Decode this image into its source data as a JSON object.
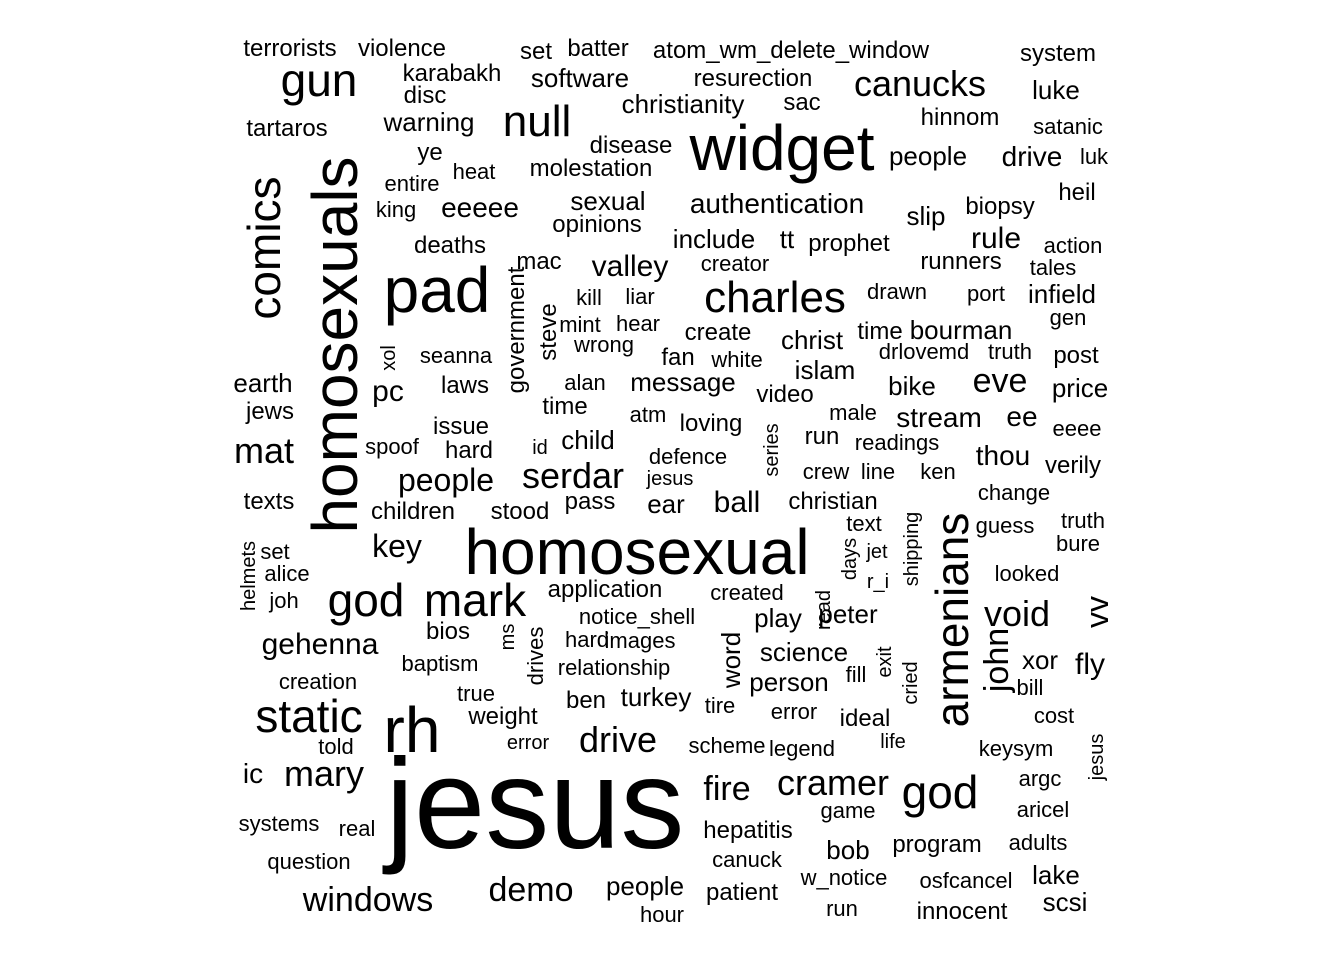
{
  "word_cloud": {
    "text_color": "#000000",
    "background_color": "#ffffff",
    "words": [
      {
        "text": "jesus",
        "vertical": false
      },
      {
        "text": "homosexual",
        "vertical": false
      },
      {
        "text": "widget",
        "vertical": false
      },
      {
        "text": "homosexuals",
        "vertical": true
      },
      {
        "text": "pad",
        "vertical": false
      },
      {
        "text": "rh",
        "vertical": false
      },
      {
        "text": "armenians",
        "vertical": true
      },
      {
        "text": "comics",
        "vertical": true
      },
      {
        "text": "gun",
        "vertical": false
      },
      {
        "text": "static",
        "vertical": false
      },
      {
        "text": "mark",
        "vertical": false
      },
      {
        "text": "god",
        "vertical": false
      },
      {
        "text": "god",
        "vertical": false
      },
      {
        "text": "charles",
        "vertical": false
      },
      {
        "text": "null",
        "vertical": false
      },
      {
        "text": "cramer",
        "vertical": false
      },
      {
        "text": "drive",
        "vertical": false
      },
      {
        "text": "void",
        "vertical": false
      },
      {
        "text": "serdar",
        "vertical": false
      },
      {
        "text": "canucks",
        "vertical": false
      },
      {
        "text": "mary",
        "vertical": false
      },
      {
        "text": "mat",
        "vertical": false
      },
      {
        "text": "windows",
        "vertical": false
      },
      {
        "text": "demo",
        "vertical": false
      },
      {
        "text": "fire",
        "vertical": false
      },
      {
        "text": "eve",
        "vertical": false
      },
      {
        "text": "john",
        "vertical": true
      },
      {
        "text": "vv",
        "vertical": true
      },
      {
        "text": "key",
        "vertical": false
      },
      {
        "text": "people",
        "vertical": false
      },
      {
        "text": "gehenna",
        "vertical": false
      },
      {
        "text": "ball",
        "vertical": false
      },
      {
        "text": "valley",
        "vertical": false
      },
      {
        "text": "rule",
        "vertical": false
      },
      {
        "text": "authentication",
        "vertical": false
      },
      {
        "text": "eeeee",
        "vertical": false
      },
      {
        "text": "fly",
        "vertical": false
      },
      {
        "text": "drive",
        "vertical": false
      },
      {
        "text": "software",
        "vertical": false
      },
      {
        "text": "terrorists",
        "vertical": false
      },
      {
        "text": "violence",
        "vertical": false
      },
      {
        "text": "set",
        "vertical": false
      },
      {
        "text": "batter",
        "vertical": false
      },
      {
        "text": "atom_wm_delete_window",
        "vertical": false
      },
      {
        "text": "system",
        "vertical": false
      },
      {
        "text": "karabakh",
        "vertical": false
      },
      {
        "text": "resurection",
        "vertical": false
      },
      {
        "text": "disc",
        "vertical": false
      },
      {
        "text": "christianity",
        "vertical": false
      },
      {
        "text": "sac",
        "vertical": false
      },
      {
        "text": "luke",
        "vertical": false
      },
      {
        "text": "tartaros",
        "vertical": false
      },
      {
        "text": "warning",
        "vertical": false
      },
      {
        "text": "hinnom",
        "vertical": false
      },
      {
        "text": "satanic",
        "vertical": false
      },
      {
        "text": "ye",
        "vertical": false
      },
      {
        "text": "disease",
        "vertical": false
      },
      {
        "text": "people",
        "vertical": false
      },
      {
        "text": "luk",
        "vertical": false
      },
      {
        "text": "heat",
        "vertical": false
      },
      {
        "text": "molestation",
        "vertical": false
      },
      {
        "text": "entire",
        "vertical": false
      },
      {
        "text": "heil",
        "vertical": false
      },
      {
        "text": "sexual",
        "vertical": false
      },
      {
        "text": "king",
        "vertical": false
      },
      {
        "text": "biopsy",
        "vertical": false
      },
      {
        "text": "slip",
        "vertical": false
      },
      {
        "text": "opinions",
        "vertical": false
      },
      {
        "text": "include",
        "vertical": false
      },
      {
        "text": "tt",
        "vertical": false
      },
      {
        "text": "prophet",
        "vertical": false
      },
      {
        "text": "deaths",
        "vertical": false
      },
      {
        "text": "action",
        "vertical": false
      },
      {
        "text": "mac",
        "vertical": false
      },
      {
        "text": "creator",
        "vertical": false
      },
      {
        "text": "runners",
        "vertical": false
      },
      {
        "text": "tales",
        "vertical": false
      },
      {
        "text": "government",
        "vertical": true
      },
      {
        "text": "steve",
        "vertical": true
      },
      {
        "text": "kill",
        "vertical": false
      },
      {
        "text": "liar",
        "vertical": false
      },
      {
        "text": "drawn",
        "vertical": false
      },
      {
        "text": "port",
        "vertical": false
      },
      {
        "text": "infield",
        "vertical": false
      },
      {
        "text": "mint",
        "vertical": false
      },
      {
        "text": "hear",
        "vertical": false
      },
      {
        "text": "create",
        "vertical": false
      },
      {
        "text": "christ",
        "vertical": false
      },
      {
        "text": "time",
        "vertical": false
      },
      {
        "text": "bourman",
        "vertical": false
      },
      {
        "text": "gen",
        "vertical": false
      },
      {
        "text": "xol",
        "vertical": true
      },
      {
        "text": "seanna",
        "vertical": false
      },
      {
        "text": "wrong",
        "vertical": false
      },
      {
        "text": "fan",
        "vertical": false
      },
      {
        "text": "white",
        "vertical": false
      },
      {
        "text": "islam",
        "vertical": false
      },
      {
        "text": "drlovemd",
        "vertical": false
      },
      {
        "text": "truth",
        "vertical": false
      },
      {
        "text": "post",
        "vertical": false
      },
      {
        "text": "earth",
        "vertical": false
      },
      {
        "text": "pc",
        "vertical": false
      },
      {
        "text": "laws",
        "vertical": false
      },
      {
        "text": "alan",
        "vertical": false
      },
      {
        "text": "message",
        "vertical": false
      },
      {
        "text": "video",
        "vertical": false
      },
      {
        "text": "bike",
        "vertical": false
      },
      {
        "text": "price",
        "vertical": false
      },
      {
        "text": "jews",
        "vertical": false
      },
      {
        "text": "time",
        "vertical": false
      },
      {
        "text": "atm",
        "vertical": false
      },
      {
        "text": "male",
        "vertical": false
      },
      {
        "text": "stream",
        "vertical": false
      },
      {
        "text": "ee",
        "vertical": false
      },
      {
        "text": "issue",
        "vertical": false
      },
      {
        "text": "loving",
        "vertical": false
      },
      {
        "text": "spoof",
        "vertical": false
      },
      {
        "text": "hard",
        "vertical": false
      },
      {
        "text": "id",
        "vertical": false
      },
      {
        "text": "child",
        "vertical": false
      },
      {
        "text": "series",
        "vertical": true
      },
      {
        "text": "run",
        "vertical": false
      },
      {
        "text": "readings",
        "vertical": false
      },
      {
        "text": "eeee",
        "vertical": false
      },
      {
        "text": "defence",
        "vertical": false
      },
      {
        "text": "thou",
        "vertical": false
      },
      {
        "text": "crew",
        "vertical": false
      },
      {
        "text": "line",
        "vertical": false
      },
      {
        "text": "ken",
        "vertical": false
      },
      {
        "text": "verily",
        "vertical": false
      },
      {
        "text": "jesus",
        "vertical": false
      },
      {
        "text": "texts",
        "vertical": false
      },
      {
        "text": "pass",
        "vertical": false
      },
      {
        "text": "ear",
        "vertical": false
      },
      {
        "text": "christian",
        "vertical": false
      },
      {
        "text": "change",
        "vertical": false
      },
      {
        "text": "children",
        "vertical": false
      },
      {
        "text": "stood",
        "vertical": false
      },
      {
        "text": "shipping",
        "vertical": true
      },
      {
        "text": "text",
        "vertical": false
      },
      {
        "text": "truth",
        "vertical": false
      },
      {
        "text": "guess",
        "vertical": false
      },
      {
        "text": "helmets",
        "vertical": true
      },
      {
        "text": "days",
        "vertical": true
      },
      {
        "text": "jet",
        "vertical": false
      },
      {
        "text": "bure",
        "vertical": false
      },
      {
        "text": "set",
        "vertical": false
      },
      {
        "text": "alice",
        "vertical": false
      },
      {
        "text": "r_i",
        "vertical": false
      },
      {
        "text": "looked",
        "vertical": false
      },
      {
        "text": "application",
        "vertical": false
      },
      {
        "text": "created",
        "vertical": false
      },
      {
        "text": "joh",
        "vertical": false
      },
      {
        "text": "read",
        "vertical": true
      },
      {
        "text": "notice_shell",
        "vertical": false
      },
      {
        "text": "play",
        "vertical": false
      },
      {
        "text": "peter",
        "vertical": false
      },
      {
        "text": "bios",
        "vertical": false
      },
      {
        "text": "ms",
        "vertical": true
      },
      {
        "text": "drives",
        "vertical": true
      },
      {
        "text": "hard",
        "vertical": false
      },
      {
        "text": "images",
        "vertical": false
      },
      {
        "text": "word",
        "vertical": true
      },
      {
        "text": "science",
        "vertical": false
      },
      {
        "text": "exit",
        "vertical": true
      },
      {
        "text": "xor",
        "vertical": false
      },
      {
        "text": "baptism",
        "vertical": false
      },
      {
        "text": "relationship",
        "vertical": false
      },
      {
        "text": "fill",
        "vertical": false
      },
      {
        "text": "creation",
        "vertical": false
      },
      {
        "text": "person",
        "vertical": false
      },
      {
        "text": "cried",
        "vertical": true
      },
      {
        "text": "bill",
        "vertical": false
      },
      {
        "text": "true",
        "vertical": false
      },
      {
        "text": "ben",
        "vertical": false
      },
      {
        "text": "turkey",
        "vertical": false
      },
      {
        "text": "tire",
        "vertical": false
      },
      {
        "text": "weight",
        "vertical": false
      },
      {
        "text": "error",
        "vertical": false
      },
      {
        "text": "ideal",
        "vertical": false
      },
      {
        "text": "cost",
        "vertical": false
      },
      {
        "text": "error",
        "vertical": false
      },
      {
        "text": "scheme",
        "vertical": false
      },
      {
        "text": "legend",
        "vertical": false
      },
      {
        "text": "life",
        "vertical": false
      },
      {
        "text": "told",
        "vertical": false
      },
      {
        "text": "keysym",
        "vertical": false
      },
      {
        "text": "jesus",
        "vertical": true
      },
      {
        "text": "ic",
        "vertical": false
      },
      {
        "text": "argc",
        "vertical": false
      },
      {
        "text": "game",
        "vertical": false
      },
      {
        "text": "aricel",
        "vertical": false
      },
      {
        "text": "systems",
        "vertical": false
      },
      {
        "text": "real",
        "vertical": false
      },
      {
        "text": "hepatitis",
        "vertical": false
      },
      {
        "text": "program",
        "vertical": false
      },
      {
        "text": "adults",
        "vertical": false
      },
      {
        "text": "bob",
        "vertical": false
      },
      {
        "text": "question",
        "vertical": false
      },
      {
        "text": "canuck",
        "vertical": false
      },
      {
        "text": "lake",
        "vertical": false
      },
      {
        "text": "w_notice",
        "vertical": false
      },
      {
        "text": "osfcancel",
        "vertical": false
      },
      {
        "text": "people",
        "vertical": false
      },
      {
        "text": "patient",
        "vertical": false
      },
      {
        "text": "scsi",
        "vertical": false
      },
      {
        "text": "run",
        "vertical": false
      },
      {
        "text": "innocent",
        "vertical": false
      },
      {
        "text": "hour",
        "vertical": false
      }
    ]
  }
}
